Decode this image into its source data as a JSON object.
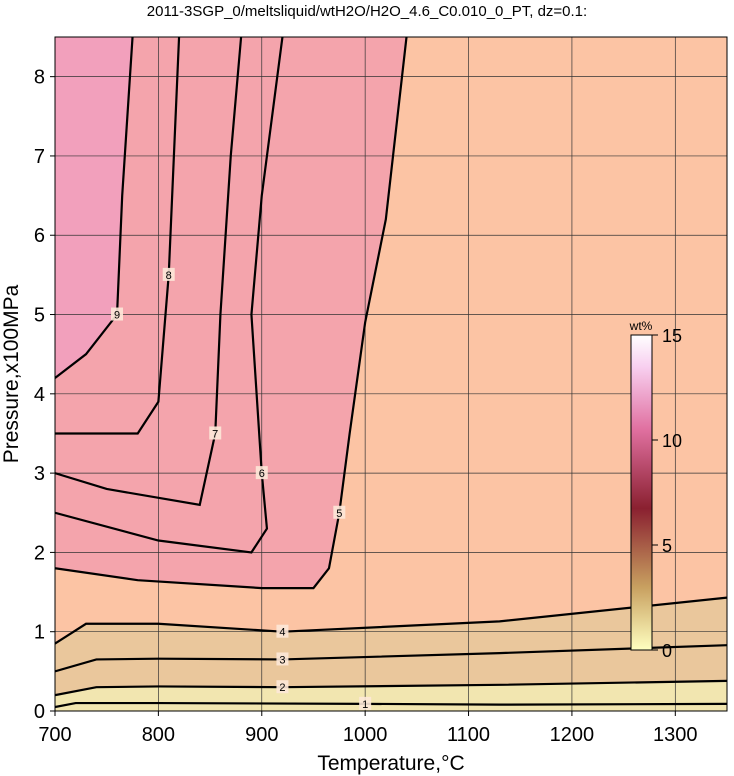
{
  "chart_data": {
    "type": "contour",
    "title": "2011-3SGP_0/meltsliquid/wtH2O/H2O_4.6_C0.010_0_PT, dz=0.1:",
    "x_label": "Temperature,°C",
    "y_label": "Pressure,x100MPa",
    "xlim": [
      700,
      1350
    ],
    "ylim": [
      0,
      8.5
    ],
    "xticks": [
      700,
      800,
      900,
      1000,
      1100,
      1200,
      1300
    ],
    "yticks": [
      0,
      1,
      2,
      3,
      4,
      5,
      6,
      7,
      8
    ],
    "grid": true,
    "colorbar": {
      "label": "wt%",
      "lim": [
        0,
        15
      ],
      "ticks": [
        0,
        5,
        10,
        15
      ]
    },
    "contours": [
      {
        "label": "1",
        "x": [
          700,
          720,
          800,
          1000,
          1130,
          1350
        ],
        "y": [
          0.05,
          0.1,
          0.1,
          0.09,
          0.08,
          0.09
        ]
      },
      {
        "label": "2",
        "x": [
          700,
          740,
          800,
          920,
          1130,
          1350
        ],
        "y": [
          0.2,
          0.3,
          0.31,
          0.3,
          0.33,
          0.38
        ]
      },
      {
        "label": "3",
        "x": [
          700,
          740,
          800,
          920,
          1130,
          1350
        ],
        "y": [
          0.5,
          0.65,
          0.66,
          0.65,
          0.73,
          0.83
        ]
      },
      {
        "label": "4",
        "x": [
          700,
          730,
          800,
          920,
          1130,
          1350
        ],
        "y": [
          0.85,
          1.1,
          1.1,
          1.0,
          1.13,
          1.43
        ]
      },
      {
        "label": "5",
        "x": [
          700,
          780,
          900,
          950,
          965,
          975,
          985,
          1000,
          1020,
          1040
        ],
        "y": [
          1.8,
          1.65,
          1.55,
          1.55,
          1.8,
          2.5,
          3.5,
          4.9,
          6.2,
          8.5
        ]
      },
      {
        "label": "6",
        "x": [
          700,
          800,
          890,
          905,
          900,
          895,
          890,
          900,
          920
        ],
        "y": [
          2.5,
          2.15,
          2.0,
          2.3,
          3.0,
          4.0,
          5.0,
          6.5,
          8.5
        ]
      },
      {
        "label": "7",
        "x": [
          700,
          750,
          840,
          855,
          860,
          870,
          880
        ],
        "y": [
          3.0,
          2.8,
          2.6,
          3.5,
          5.0,
          7.0,
          8.5
        ]
      },
      {
        "label": "8",
        "x": [
          700,
          780,
          800,
          810,
          815,
          820
        ],
        "y": [
          3.5,
          3.5,
          3.9,
          5.5,
          7.0,
          8.5
        ]
      },
      {
        "label": "9",
        "x": [
          700,
          730,
          760,
          765,
          775
        ],
        "y": [
          4.2,
          4.5,
          5.0,
          6.5,
          8.5
        ]
      }
    ]
  }
}
